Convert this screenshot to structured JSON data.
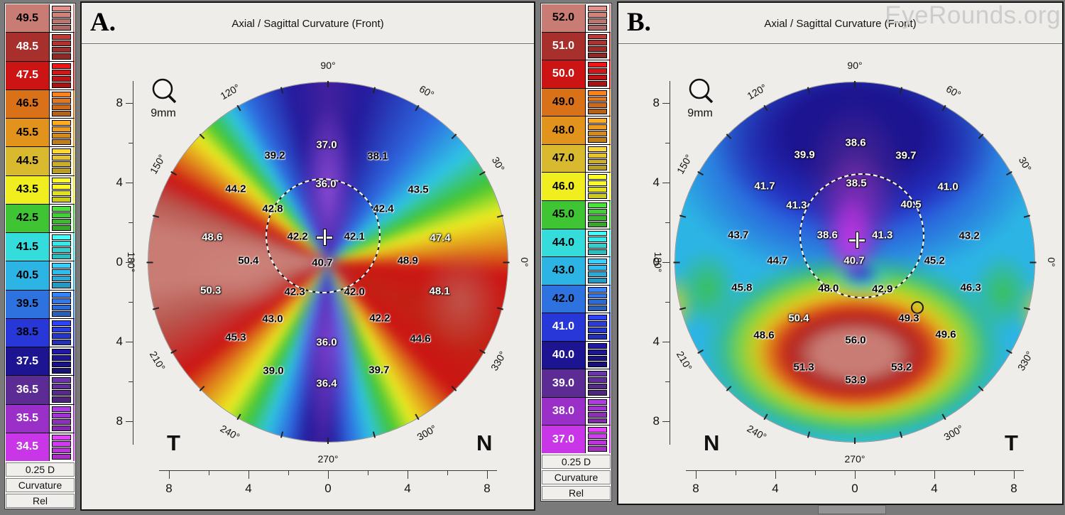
{
  "watermark": "EyeRounds.org",
  "panels": [
    {
      "label": "A.",
      "title": "Axial / Sagittal Curvature (Front)",
      "magnifier_label": "9mm",
      "corner_left": "T",
      "corner_right": "N",
      "scale": {
        "step_label": "0.25 D",
        "mode_label": "Curvature",
        "type_label": "Rel",
        "entries": [
          {
            "label": "49.5",
            "color": "#C87C74",
            "text_color": "#000000"
          },
          {
            "label": "48.5",
            "color": "#A8302C",
            "text_color": "#ffffff"
          },
          {
            "label": "47.5",
            "color": "#CC1414",
            "text_color": "#ffffff"
          },
          {
            "label": "46.5",
            "color": "#D97118",
            "text_color": "#000000"
          },
          {
            "label": "45.5",
            "color": "#E2931C",
            "text_color": "#000000"
          },
          {
            "label": "44.5",
            "color": "#D9B92E",
            "text_color": "#000000"
          },
          {
            "label": "43.5",
            "color": "#F0EE1E",
            "text_color": "#000000"
          },
          {
            "label": "42.5",
            "color": "#3FC433",
            "text_color": "#000000"
          },
          {
            "label": "41.5",
            "color": "#35DCDC",
            "text_color": "#000000"
          },
          {
            "label": "40.5",
            "color": "#2CB4E4",
            "text_color": "#000000"
          },
          {
            "label": "39.5",
            "color": "#2E72E0",
            "text_color": "#000000"
          },
          {
            "label": "38.5",
            "color": "#2838D8",
            "text_color": "#000000"
          },
          {
            "label": "37.5",
            "color": "#1C1490",
            "text_color": "#ffffff"
          },
          {
            "label": "36.5",
            "color": "#5C2C94",
            "text_color": "#ffffff"
          },
          {
            "label": "35.5",
            "color": "#9A30C8",
            "text_color": "#ffffff"
          },
          {
            "label": "34.5",
            "color": "#C836E8",
            "text_color": "#ffffff"
          }
        ]
      },
      "axis": {
        "y_ticks": [
          "8",
          "4",
          "0",
          "4",
          "8"
        ],
        "x_ticks": [
          "8",
          "4",
          "0",
          "4",
          "8"
        ]
      },
      "degree_labels": [
        {
          "t": "90°",
          "a": 90
        },
        {
          "t": "60°",
          "a": 60
        },
        {
          "t": "30°",
          "a": 30
        },
        {
          "t": "0°",
          "a": 0
        },
        {
          "t": "330°",
          "a": 330
        },
        {
          "t": "300°",
          "a": 300
        },
        {
          "t": "270°",
          "a": 270
        },
        {
          "t": "240°",
          "a": 240
        },
        {
          "t": "210°",
          "a": 210
        },
        {
          "t": "180°",
          "a": 180
        },
        {
          "t": "150°",
          "a": 150
        },
        {
          "t": "120°",
          "a": 120
        }
      ],
      "values": [
        {
          "t": "37.0",
          "x": 49.6,
          "y": 17.6,
          "c": "w"
        },
        {
          "t": "39.2",
          "x": 35.3,
          "y": 20.6,
          "c": "k"
        },
        {
          "t": "38.1",
          "x": 63.7,
          "y": 20.8,
          "c": "k"
        },
        {
          "t": "44.2",
          "x": 24.5,
          "y": 29.8,
          "c": "k"
        },
        {
          "t": "36.0",
          "x": 49.4,
          "y": 28.4,
          "c": "w"
        },
        {
          "t": "43.5",
          "x": 74.9,
          "y": 30.0,
          "c": "k"
        },
        {
          "t": "42.8",
          "x": 34.7,
          "y": 35.3,
          "c": "k"
        },
        {
          "t": "42.4",
          "x": 65.3,
          "y": 35.3,
          "c": "k"
        },
        {
          "t": "48.6",
          "x": 18.0,
          "y": 43.1,
          "c": "w"
        },
        {
          "t": "42.2",
          "x": 41.6,
          "y": 42.9,
          "c": "k"
        },
        {
          "t": "42.1",
          "x": 57.3,
          "y": 42.9,
          "c": "k"
        },
        {
          "t": "47.4",
          "x": 81.0,
          "y": 43.3,
          "c": "w"
        },
        {
          "t": "50.4",
          "x": 28.0,
          "y": 49.6,
          "c": "k"
        },
        {
          "t": "40.7",
          "x": 48.4,
          "y": 50.2,
          "c": "k"
        },
        {
          "t": "48.9",
          "x": 72.0,
          "y": 49.6,
          "c": "k"
        },
        {
          "t": "50.3",
          "x": 17.6,
          "y": 57.8,
          "c": "w"
        },
        {
          "t": "42.3",
          "x": 40.8,
          "y": 58.2,
          "c": "k"
        },
        {
          "t": "42.0",
          "x": 57.3,
          "y": 58.2,
          "c": "k"
        },
        {
          "t": "48.1",
          "x": 80.8,
          "y": 58.0,
          "c": "w"
        },
        {
          "t": "43.0",
          "x": 34.7,
          "y": 65.7,
          "c": "k"
        },
        {
          "t": "42.2",
          "x": 64.3,
          "y": 65.5,
          "c": "k"
        },
        {
          "t": "45.3",
          "x": 24.5,
          "y": 70.8,
          "c": "k"
        },
        {
          "t": "36.0",
          "x": 49.6,
          "y": 72.2,
          "c": "w"
        },
        {
          "t": "44.6",
          "x": 75.5,
          "y": 71.2,
          "c": "k"
        },
        {
          "t": "39.0",
          "x": 34.9,
          "y": 80.0,
          "c": "k"
        },
        {
          "t": "39.7",
          "x": 64.1,
          "y": 79.8,
          "c": "k"
        },
        {
          "t": "36.4",
          "x": 49.6,
          "y": 83.5,
          "c": "w"
        }
      ]
    },
    {
      "label": "B.",
      "title": "Axial / Sagittal Curvature (Front)",
      "magnifier_label": "9mm",
      "corner_left": "N",
      "corner_right": "T",
      "scale": {
        "step_label": "0.25 D",
        "mode_label": "Curvature",
        "type_label": "Rel",
        "entries": [
          {
            "label": "52.0",
            "color": "#C87C74",
            "text_color": "#000000"
          },
          {
            "label": "51.0",
            "color": "#A8302C",
            "text_color": "#ffffff"
          },
          {
            "label": "50.0",
            "color": "#CC1414",
            "text_color": "#ffffff"
          },
          {
            "label": "49.0",
            "color": "#D97118",
            "text_color": "#000000"
          },
          {
            "label": "48.0",
            "color": "#E2931C",
            "text_color": "#000000"
          },
          {
            "label": "47.0",
            "color": "#D9B92E",
            "text_color": "#000000"
          },
          {
            "label": "46.0",
            "color": "#F0EE1E",
            "text_color": "#000000"
          },
          {
            "label": "45.0",
            "color": "#3FC433",
            "text_color": "#000000"
          },
          {
            "label": "44.0",
            "color": "#35DCDC",
            "text_color": "#000000"
          },
          {
            "label": "43.0",
            "color": "#2CB4E4",
            "text_color": "#000000"
          },
          {
            "label": "42.0",
            "color": "#2E72E0",
            "text_color": "#000000"
          },
          {
            "label": "41.0",
            "color": "#2838D8",
            "text_color": "#ffffff"
          },
          {
            "label": "40.0",
            "color": "#1C1490",
            "text_color": "#ffffff"
          },
          {
            "label": "39.0",
            "color": "#5C2C94",
            "text_color": "#ffffff"
          },
          {
            "label": "38.0",
            "color": "#9A30C8",
            "text_color": "#ffffff"
          },
          {
            "label": "37.0",
            "color": "#C836E8",
            "text_color": "#ffffff"
          }
        ]
      },
      "axis": {
        "y_ticks": [
          "8",
          "4",
          "0",
          "4",
          "8"
        ],
        "x_ticks": [
          "8",
          "4",
          "0",
          "4",
          "8"
        ]
      },
      "degree_labels": [
        {
          "t": "90°",
          "a": 90
        },
        {
          "t": "60°",
          "a": 60
        },
        {
          "t": "30°",
          "a": 30
        },
        {
          "t": "0°",
          "a": 0
        },
        {
          "t": "330°",
          "a": 330
        },
        {
          "t": "300°",
          "a": 300
        },
        {
          "t": "270°",
          "a": 270
        },
        {
          "t": "240°",
          "a": 240
        },
        {
          "t": "210°",
          "a": 210
        },
        {
          "t": "180°",
          "a": 180
        },
        {
          "t": "150°",
          "a": 150
        },
        {
          "t": "120°",
          "a": 120
        }
      ],
      "values": [
        {
          "t": "38.6",
          "x": 50.2,
          "y": 17.1,
          "c": "w"
        },
        {
          "t": "39.9",
          "x": 36.1,
          "y": 20.4,
          "c": "w"
        },
        {
          "t": "39.7",
          "x": 64.1,
          "y": 20.6,
          "c": "w"
        },
        {
          "t": "41.7",
          "x": 25.1,
          "y": 29.0,
          "c": "w"
        },
        {
          "t": "38.5",
          "x": 50.4,
          "y": 28.2,
          "c": "w"
        },
        {
          "t": "41.0",
          "x": 75.7,
          "y": 29.2,
          "c": "w"
        },
        {
          "t": "41.3",
          "x": 33.9,
          "y": 34.3,
          "c": "w"
        },
        {
          "t": "40.5",
          "x": 65.5,
          "y": 34.1,
          "c": "w"
        },
        {
          "t": "43.7",
          "x": 17.8,
          "y": 42.5,
          "c": "k"
        },
        {
          "t": "38.6",
          "x": 42.4,
          "y": 42.5,
          "c": "w"
        },
        {
          "t": "41.3",
          "x": 57.6,
          "y": 42.5,
          "c": "w"
        },
        {
          "t": "43.2",
          "x": 81.6,
          "y": 42.7,
          "c": "k"
        },
        {
          "t": "44.7",
          "x": 28.6,
          "y": 49.6,
          "c": "k"
        },
        {
          "t": "40.7",
          "x": 49.8,
          "y": 49.6,
          "c": "w"
        },
        {
          "t": "45.2",
          "x": 72.0,
          "y": 49.6,
          "c": "k"
        },
        {
          "t": "45.8",
          "x": 18.8,
          "y": 57.1,
          "c": "k"
        },
        {
          "t": "48.0",
          "x": 42.7,
          "y": 57.3,
          "c": "k"
        },
        {
          "t": "42.9",
          "x": 57.6,
          "y": 57.5,
          "c": "k"
        },
        {
          "t": "46.3",
          "x": 82.0,
          "y": 57.1,
          "c": "k"
        },
        {
          "t": "50.4",
          "x": 34.5,
          "y": 65.5,
          "c": "w"
        },
        {
          "t": "49.3",
          "x": 64.9,
          "y": 65.5,
          "c": "k"
        },
        {
          "t": "48.6",
          "x": 24.9,
          "y": 70.2,
          "c": "k"
        },
        {
          "t": "56.0",
          "x": 50.2,
          "y": 71.6,
          "c": "k"
        },
        {
          "t": "49.6",
          "x": 75.1,
          "y": 70.0,
          "c": "k"
        },
        {
          "t": "51.3",
          "x": 35.9,
          "y": 79.0,
          "c": "k"
        },
        {
          "t": "53.2",
          "x": 62.9,
          "y": 79.0,
          "c": "k"
        },
        {
          "t": "53.9",
          "x": 50.2,
          "y": 82.5,
          "c": "k"
        }
      ]
    }
  ],
  "chart_data": [
    {
      "type": "heatmap",
      "panel": "A",
      "title": "Axial / Sagittal Curvature (Front)",
      "units": "D",
      "orientation": {
        "bottom_left": "T",
        "bottom_right": "N"
      },
      "colorbar": {
        "min": 34.5,
        "max": 49.5,
        "step_label": "0.25 D",
        "mode": "Curvature",
        "scale_type": "Rel",
        "tick_labels": [
          49.5,
          48.5,
          47.5,
          46.5,
          45.5,
          44.5,
          43.5,
          42.5,
          41.5,
          40.5,
          39.5,
          38.5,
          37.5,
          36.5,
          35.5,
          34.5
        ]
      },
      "axes": {
        "x_ticks_mm": [
          -8,
          -4,
          0,
          4,
          8
        ],
        "y_ticks_mm": [
          8,
          4,
          0,
          -4,
          -8
        ],
        "map_diameter_label": "9mm"
      },
      "meridian_labels_deg": [
        90,
        60,
        30,
        0,
        330,
        300,
        270,
        240,
        210,
        180,
        150,
        120
      ],
      "sampled_points_x_y_D": [
        [
          -0.1,
          5.9,
          37.0
        ],
        [
          -2.7,
          5.4,
          39.2
        ],
        [
          2.5,
          5.3,
          38.1
        ],
        [
          -4.6,
          3.7,
          44.2
        ],
        [
          -0.1,
          3.9,
          36.0
        ],
        [
          4.5,
          3.6,
          43.5
        ],
        [
          -2.8,
          2.7,
          42.8
        ],
        [
          2.8,
          2.7,
          42.4
        ],
        [
          -5.8,
          1.2,
          48.6
        ],
        [
          -1.5,
          1.3,
          42.2
        ],
        [
          1.3,
          1.3,
          42.1
        ],
        [
          5.6,
          1.2,
          47.4
        ],
        [
          -4.0,
          0.1,
          50.4
        ],
        [
          -0.3,
          0.0,
          40.7
        ],
        [
          4.0,
          0.1,
          48.9
        ],
        [
          -5.9,
          -1.4,
          50.3
        ],
        [
          -1.7,
          -1.5,
          42.3
        ],
        [
          1.3,
          -1.5,
          42.0
        ],
        [
          5.6,
          -1.5,
          48.1
        ],
        [
          -2.8,
          -2.9,
          43.0
        ],
        [
          2.6,
          -2.8,
          42.2
        ],
        [
          -4.6,
          -3.8,
          45.3
        ],
        [
          -0.1,
          -4.0,
          36.0
        ],
        [
          4.6,
          -3.9,
          44.6
        ],
        [
          -2.8,
          -5.5,
          39.0
        ],
        [
          2.6,
          -5.4,
          39.7
        ],
        [
          -0.1,
          -6.1,
          36.4
        ]
      ]
    },
    {
      "type": "heatmap",
      "panel": "B",
      "title": "Axial / Sagittal Curvature (Front)",
      "units": "D",
      "orientation": {
        "bottom_left": "N",
        "bottom_right": "T"
      },
      "colorbar": {
        "min": 37.0,
        "max": 52.0,
        "step_label": "0.25 D",
        "mode": "Curvature",
        "scale_type": "Rel",
        "tick_labels": [
          52.0,
          51.0,
          50.0,
          49.0,
          48.0,
          47.0,
          46.0,
          45.0,
          44.0,
          43.0,
          42.0,
          41.0,
          40.0,
          39.0,
          38.0,
          37.0
        ]
      },
      "axes": {
        "x_ticks_mm": [
          -8,
          -4,
          0,
          4,
          8
        ],
        "y_ticks_mm": [
          8,
          4,
          0,
          -4,
          -8
        ],
        "map_diameter_label": "9mm"
      },
      "meridian_labels_deg": [
        90,
        60,
        30,
        0,
        330,
        300,
        270,
        240,
        210,
        180,
        150,
        120
      ],
      "sampled_points_x_y_D": [
        [
          0.0,
          6.0,
          38.6
        ],
        [
          -2.5,
          5.4,
          39.9
        ],
        [
          2.6,
          5.4,
          39.7
        ],
        [
          -4.5,
          3.8,
          41.7
        ],
        [
          0.1,
          4.0,
          38.5
        ],
        [
          4.7,
          3.8,
          41.0
        ],
        [
          -2.9,
          2.9,
          41.3
        ],
        [
          2.8,
          2.9,
          40.5
        ],
        [
          -5.9,
          1.4,
          43.7
        ],
        [
          -1.4,
          1.4,
          38.6
        ],
        [
          1.4,
          1.4,
          41.3
        ],
        [
          5.8,
          1.3,
          43.2
        ],
        [
          -3.9,
          0.1,
          44.7
        ],
        [
          0.0,
          0.1,
          40.7
        ],
        [
          4.0,
          0.1,
          45.2
        ],
        [
          -5.7,
          -1.3,
          45.8
        ],
        [
          -1.3,
          -1.3,
          48.0
        ],
        [
          1.4,
          -1.4,
          42.9
        ],
        [
          5.8,
          -1.3,
          46.3
        ],
        [
          -2.8,
          -2.8,
          50.4
        ],
        [
          2.7,
          -2.8,
          49.3
        ],
        [
          -4.6,
          -3.7,
          48.6
        ],
        [
          0.0,
          -3.9,
          56.0
        ],
        [
          4.6,
          -3.6,
          49.6
        ],
        [
          -2.6,
          -5.3,
          51.3
        ],
        [
          2.4,
          -5.3,
          53.2
        ],
        [
          0.0,
          -5.9,
          53.9
        ]
      ]
    }
  ]
}
